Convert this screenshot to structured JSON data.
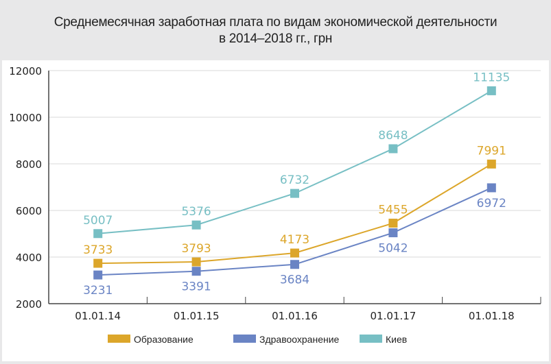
{
  "header": {
    "title_line1": "Среднемесячная заработная плата по видам экономической деятельности",
    "title_line2": "в 2014–2018 гг., грн"
  },
  "chart_data": {
    "type": "line",
    "title": "Среднемесячная заработная плата по видам экономической деятельности в 2014–2018 гг., грн",
    "xlabel": "",
    "ylabel": "",
    "categories": [
      "01.01.14",
      "01.01.15",
      "01.01.16",
      "01.01.17",
      "01.01.18"
    ],
    "ylim": [
      2000,
      12000
    ],
    "yticks": [
      "2000",
      "4000",
      "6000",
      "8000",
      "10000",
      "12000"
    ],
    "ytick_values": [
      2000,
      4000,
      6000,
      8000,
      10000,
      12000
    ],
    "grid": true,
    "legend_position": "bottom",
    "series": [
      {
        "name": "Образование",
        "color": "#dca62a",
        "label_position": "above",
        "values": [
          3733,
          3793,
          4173,
          5455,
          7991
        ],
        "labels": [
          "3733",
          "3793",
          "4173",
          "5455",
          "7991"
        ]
      },
      {
        "name": "Здравоохранение",
        "color": "#6a84c4",
        "label_position": "below",
        "values": [
          3231,
          3391,
          3684,
          5042,
          6972
        ],
        "labels": [
          "3231",
          "3391",
          "3684",
          "5042",
          "6972"
        ]
      },
      {
        "name": "Киев",
        "color": "#77bfc4",
        "label_position": "above",
        "values": [
          5007,
          5376,
          6732,
          8648,
          11135
        ],
        "labels": [
          "5007",
          "5376",
          "6732",
          "8648",
          "11135"
        ]
      }
    ]
  }
}
